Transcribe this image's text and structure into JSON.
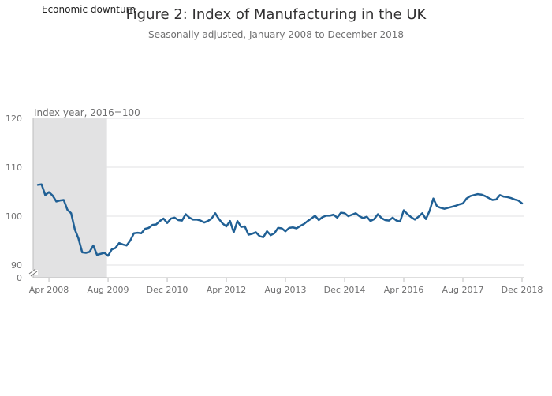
{
  "chart_data": {
    "type": "line",
    "title": "Figure 2: Index of Manufacturing in the UK",
    "subtitle": "Seasonally adjusted, January 2008 to December 2018",
    "ylabel": "Index year, 2016=100",
    "xlabel": "",
    "ylim": [
      90,
      120
    ],
    "y_break": true,
    "y_ticks": [
      0,
      90,
      100,
      110,
      120
    ],
    "x_range": [
      "2008-01",
      "2018-12"
    ],
    "x_ticks": [
      {
        "date": "2008-04",
        "label": "Apr 2008"
      },
      {
        "date": "2009-08",
        "label": "Aug 2009"
      },
      {
        "date": "2010-12",
        "label": "Dec 2010"
      },
      {
        "date": "2012-04",
        "label": "Apr 2012"
      },
      {
        "date": "2013-08",
        "label": "Aug 2013"
      },
      {
        "date": "2014-12",
        "label": "Dec 2014"
      },
      {
        "date": "2016-04",
        "label": "Apr 2016"
      },
      {
        "date": "2017-08",
        "label": "Aug 2017"
      },
      {
        "date": "2018-12",
        "label": "Dec 2018"
      }
    ],
    "grid": true,
    "legend": "top-left",
    "shaded_region": {
      "name": "Economic downturn",
      "start": "2008-01",
      "end": "2009-07",
      "color": "#e2e2e3"
    },
    "series": [
      {
        "color": "#206095",
        "start": "2008-01",
        "values": [
          106.4,
          106.5,
          104.3,
          104.9,
          104.2,
          103.0,
          103.2,
          103.3,
          101.3,
          100.6,
          97.3,
          95.4,
          92.6,
          92.5,
          92.7,
          94.0,
          92.1,
          92.3,
          92.5,
          91.9,
          93.2,
          93.5,
          94.5,
          94.2,
          94.0,
          95.0,
          96.5,
          96.6,
          96.5,
          97.4,
          97.6,
          98.2,
          98.3,
          99.0,
          99.5,
          98.6,
          99.5,
          99.7,
          99.2,
          99.1,
          100.4,
          99.7,
          99.3,
          99.3,
          99.1,
          98.7,
          99.0,
          99.5,
          100.6,
          99.4,
          98.5,
          97.9,
          99.0,
          96.7,
          99.0,
          97.8,
          97.9,
          96.2,
          96.4,
          96.7,
          95.9,
          95.7,
          96.9,
          96.1,
          96.5,
          97.6,
          97.5,
          96.9,
          97.6,
          97.7,
          97.5,
          98.0,
          98.4,
          99.0,
          99.5,
          100.1,
          99.2,
          99.8,
          100.1,
          100.1,
          100.3,
          99.7,
          100.7,
          100.6,
          100.0,
          100.3,
          100.6,
          100.0,
          99.6,
          99.9,
          99.0,
          99.4,
          100.4,
          99.6,
          99.2,
          99.1,
          99.7,
          99.1,
          98.9,
          101.2,
          100.4,
          99.8,
          99.3,
          99.9,
          100.6,
          99.4,
          101.1,
          103.6,
          102.0,
          101.7,
          101.5,
          101.7,
          101.9,
          102.1,
          102.4,
          102.6,
          103.6,
          104.1,
          104.3,
          104.5,
          104.4,
          104.1,
          103.7,
          103.3,
          103.4,
          104.3,
          104.0,
          103.9,
          103.7,
          103.4,
          103.2,
          102.6
        ]
      }
    ]
  }
}
